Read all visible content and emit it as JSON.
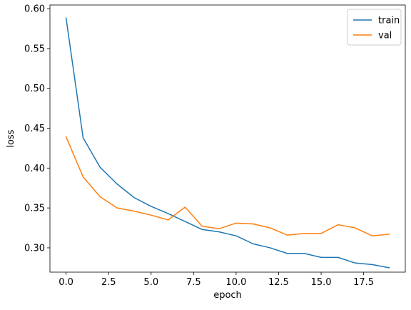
{
  "chart_data": {
    "type": "line",
    "title": "",
    "xlabel": "epoch",
    "ylabel": "loss",
    "xlim": [
      -0.95,
      19.95
    ],
    "ylim": [
      0.2695,
      0.6045
    ],
    "xticks": [
      0.0,
      2.5,
      5.0,
      7.5,
      10.0,
      12.5,
      15.0,
      17.5
    ],
    "xtick_labels": [
      "0.0",
      "2.5",
      "5.0",
      "7.5",
      "10.0",
      "12.5",
      "15.0",
      "17.5"
    ],
    "yticks": [
      0.3,
      0.35,
      0.4,
      0.45,
      0.5,
      0.55,
      0.6
    ],
    "ytick_labels": [
      "0.30",
      "0.35",
      "0.40",
      "0.45",
      "0.50",
      "0.55",
      "0.60"
    ],
    "grid": false,
    "legend_position": "top-right",
    "x": [
      0,
      1,
      2,
      3,
      4,
      5,
      6,
      7,
      8,
      9,
      10,
      11,
      12,
      13,
      14,
      15,
      16,
      17,
      18,
      19
    ],
    "series": [
      {
        "name": "train",
        "color": "#1f77b4",
        "values": [
          0.588,
          0.438,
          0.401,
          0.38,
          0.363,
          0.352,
          0.343,
          0.333,
          0.323,
          0.32,
          0.315,
          0.305,
          0.3,
          0.293,
          0.293,
          0.288,
          0.288,
          0.281,
          0.279,
          0.275
        ]
      },
      {
        "name": "val",
        "color": "#ff7f0e",
        "values": [
          0.439,
          0.389,
          0.364,
          0.35,
          0.346,
          0.341,
          0.335,
          0.351,
          0.327,
          0.324,
          0.331,
          0.33,
          0.325,
          0.316,
          0.318,
          0.318,
          0.329,
          0.325,
          0.315,
          0.317
        ]
      }
    ]
  }
}
